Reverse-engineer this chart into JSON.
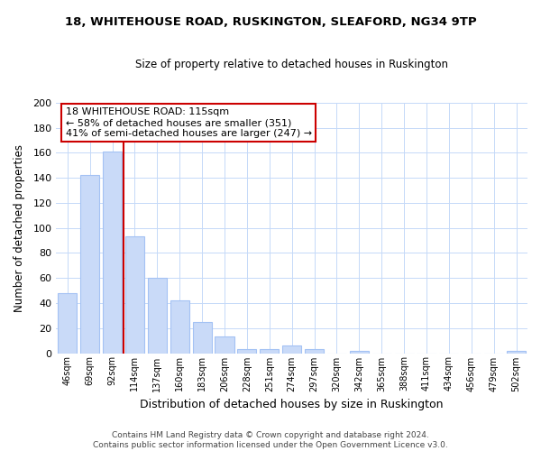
{
  "title1": "18, WHITEHOUSE ROAD, RUSKINGTON, SLEAFORD, NG34 9TP",
  "title2": "Size of property relative to detached houses in Ruskington",
  "xlabel": "Distribution of detached houses by size in Ruskington",
  "ylabel": "Number of detached properties",
  "bar_labels": [
    "46sqm",
    "69sqm",
    "92sqm",
    "114sqm",
    "137sqm",
    "160sqm",
    "183sqm",
    "206sqm",
    "228sqm",
    "251sqm",
    "274sqm",
    "297sqm",
    "320sqm",
    "342sqm",
    "365sqm",
    "388sqm",
    "411sqm",
    "434sqm",
    "456sqm",
    "479sqm",
    "502sqm"
  ],
  "bar_values": [
    48,
    142,
    161,
    93,
    60,
    42,
    25,
    13,
    3,
    3,
    6,
    3,
    0,
    2,
    0,
    0,
    0,
    0,
    0,
    0,
    2
  ],
  "bar_color": "#c9daf8",
  "bar_edge_color": "#a4c2f4",
  "vline_color": "#cc0000",
  "annotation_text": "18 WHITEHOUSE ROAD: 115sqm\n← 58% of detached houses are smaller (351)\n41% of semi-detached houses are larger (247) →",
  "annotation_box_color": "#ffffff",
  "annotation_box_edge": "#cc0000",
  "ylim": [
    0,
    200
  ],
  "yticks": [
    0,
    20,
    40,
    60,
    80,
    100,
    120,
    140,
    160,
    180,
    200
  ],
  "grid_color": "#c5d9f8",
  "footer": "Contains HM Land Registry data © Crown copyright and database right 2024.\nContains public sector information licensed under the Open Government Licence v3.0.",
  "bg_color": "#ffffff"
}
